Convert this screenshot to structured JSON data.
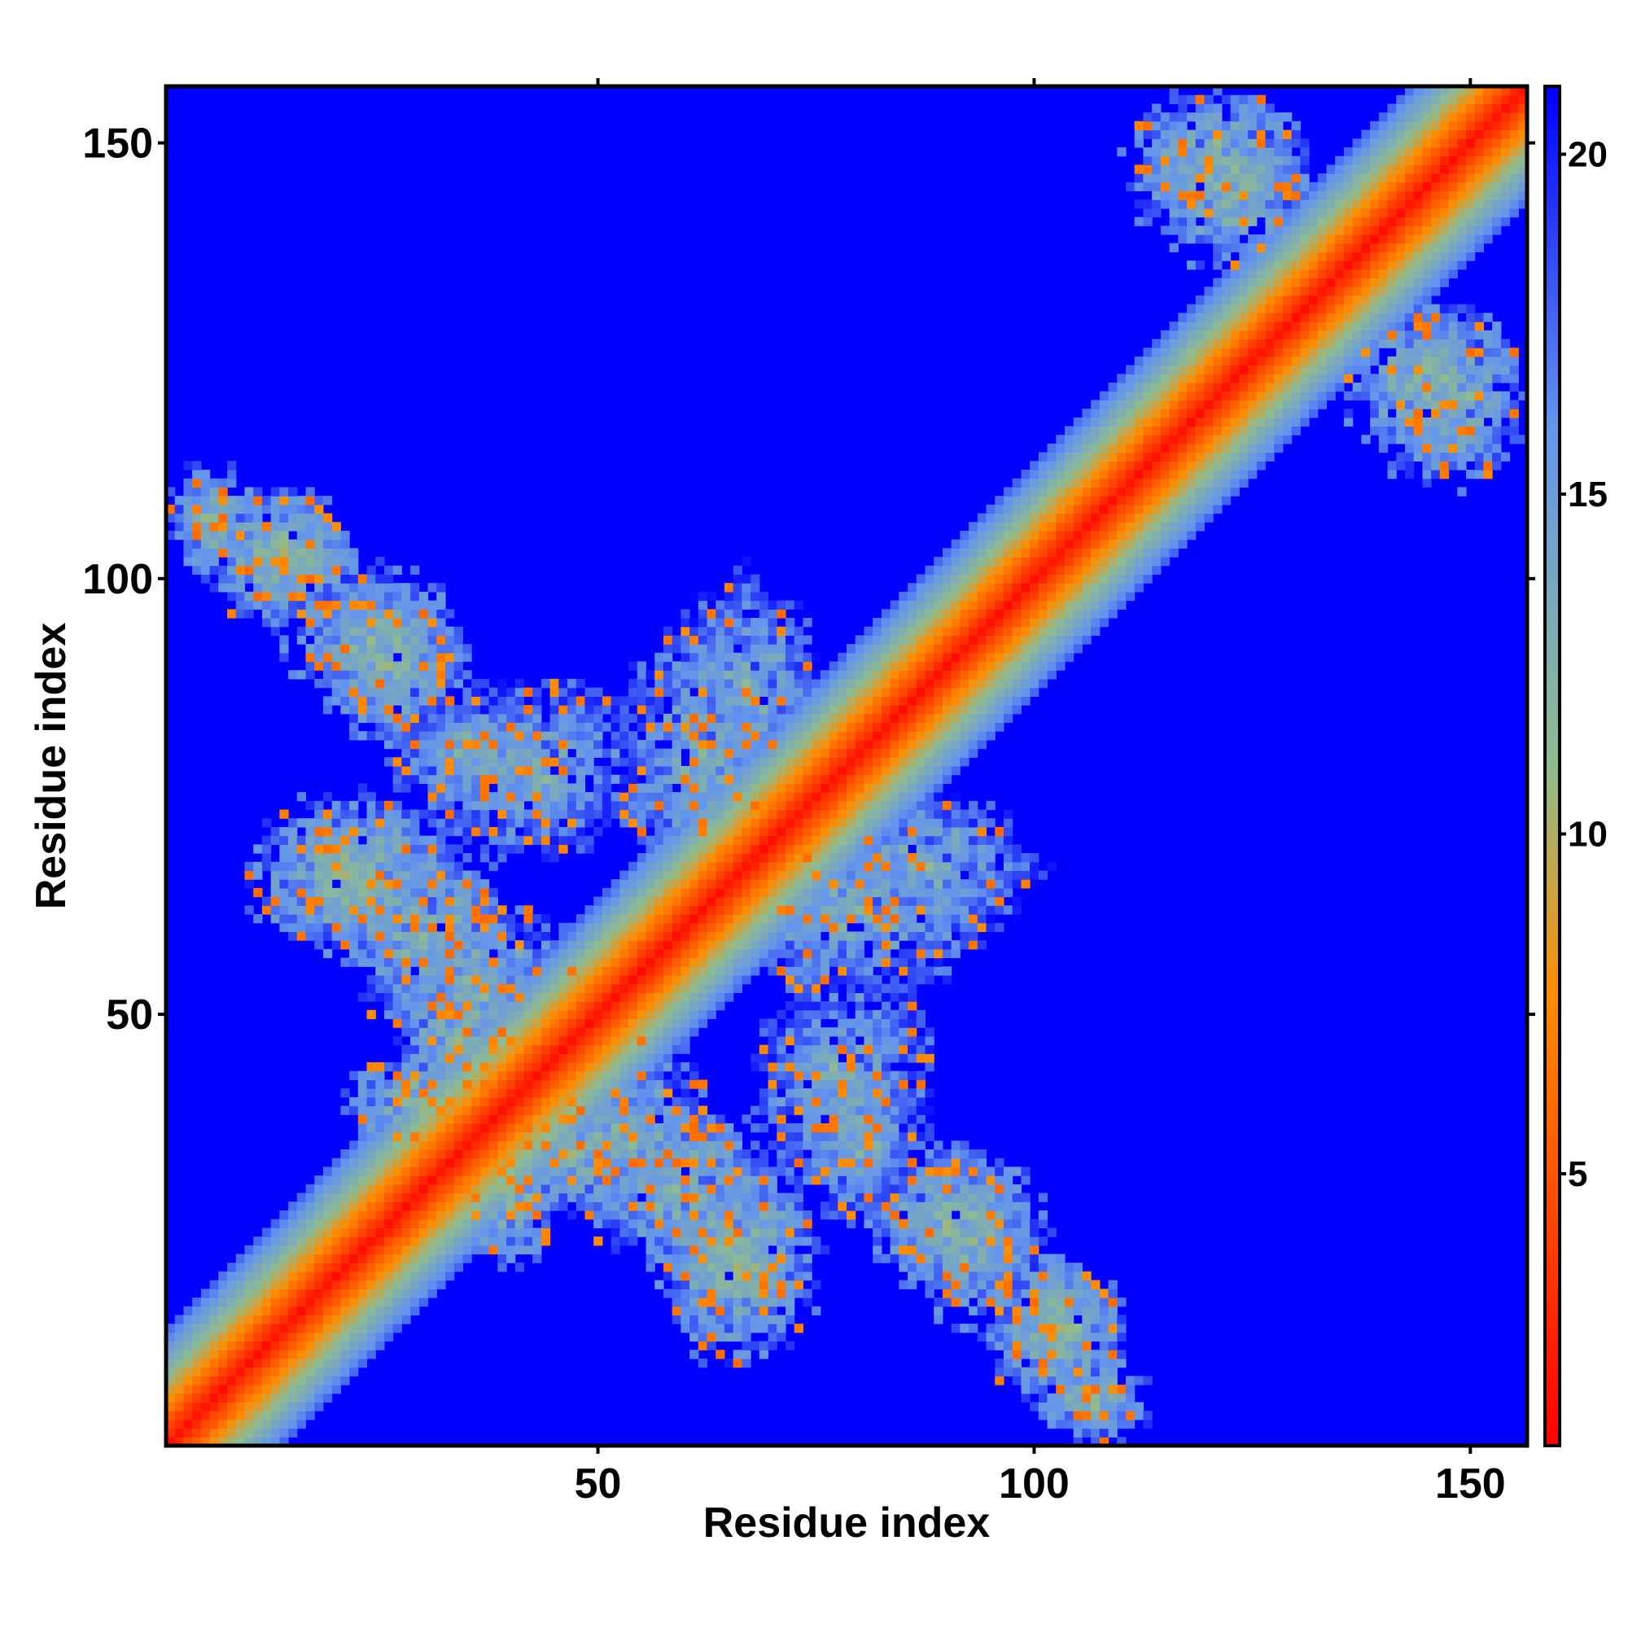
{
  "chart_data": {
    "type": "heatmap",
    "title": "",
    "xlabel": "Residue index",
    "ylabel": "Residue index",
    "n_residues": 156,
    "xlim": [
      1,
      156
    ],
    "ylim": [
      1,
      156
    ],
    "x_ticks": [
      50,
      100,
      150
    ],
    "y_ticks": [
      50,
      100,
      150
    ],
    "colorbar": {
      "range": [
        1,
        21
      ],
      "ticks": [
        5,
        10,
        15,
        20
      ],
      "colors": [
        "#ff0000",
        "#ff8c00",
        "#8fbc8f",
        "#6495ed",
        "#0000ff"
      ],
      "stops": [
        0,
        0.33,
        0.5,
        0.75,
        1
      ]
    },
    "background_value": 21,
    "diagonal_band": {
      "core_value": 1.5,
      "gradient_per_residue": 1.2,
      "max_offset": 13
    },
    "contact_blobs": [
      {
        "x": 13,
        "y": 103,
        "rx": 9,
        "ry": 7,
        "level": 10
      },
      {
        "x": 25,
        "y": 92,
        "rx": 10,
        "ry": 7,
        "level": 10
      },
      {
        "x": 36,
        "y": 80,
        "rx": 9,
        "ry": 7,
        "level": 11
      },
      {
        "x": 22,
        "y": 66,
        "rx": 12,
        "ry": 9,
        "level": 10
      },
      {
        "x": 36,
        "y": 54,
        "rx": 12,
        "ry": 9,
        "level": 11
      },
      {
        "x": 30,
        "y": 40,
        "rx": 9,
        "ry": 6,
        "level": 10
      },
      {
        "x": 47,
        "y": 35,
        "rx": 11,
        "ry": 8,
        "level": 10
      },
      {
        "x": 60,
        "y": 30,
        "rx": 10,
        "ry": 9,
        "level": 10
      },
      {
        "x": 66,
        "y": 20,
        "rx": 8,
        "ry": 7,
        "level": 10
      },
      {
        "x": 78,
        "y": 42,
        "rx": 10,
        "ry": 14,
        "level": 11
      },
      {
        "x": 91,
        "y": 26,
        "rx": 10,
        "ry": 8,
        "level": 10
      },
      {
        "x": 102,
        "y": 15,
        "rx": 8,
        "ry": 7,
        "level": 10
      },
      {
        "x": 107,
        "y": 6,
        "rx": 6,
        "ry": 5,
        "level": 10
      },
      {
        "x": 62,
        "y": 79,
        "rx": 9,
        "ry": 16,
        "level": 11
      },
      {
        "x": 88,
        "y": 67,
        "rx": 12,
        "ry": 8,
        "level": 11
      },
      {
        "x": 121,
        "y": 148,
        "rx": 10,
        "ry": 8,
        "level": 10
      },
      {
        "x": 145,
        "y": 122,
        "rx": 9,
        "ry": 10,
        "level": 10
      }
    ],
    "seed": 7
  }
}
